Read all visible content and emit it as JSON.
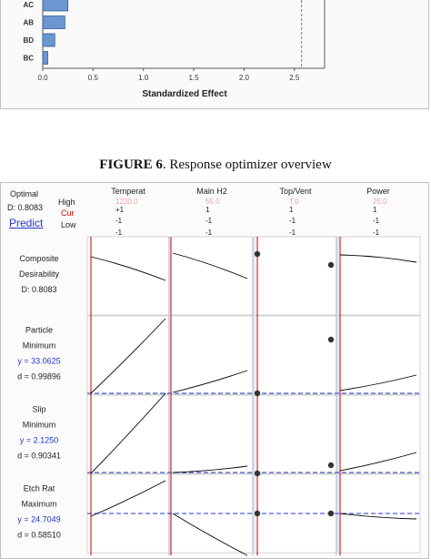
{
  "chart_data": [
    {
      "type": "bar",
      "orientation": "horizontal",
      "title": "",
      "xlabel": "Standardized Effect",
      "ylabel": "",
      "categories": [
        "AC",
        "AB",
        "BD",
        "BC"
      ],
      "values": [
        0.25,
        0.22,
        0.12,
        0.05
      ],
      "xlim": [
        0,
        2.8
      ],
      "xticks": [
        "0.0",
        "0.5",
        "1.0",
        "1.5",
        "2.0",
        "2.5"
      ],
      "reference_line": 2.571,
      "bar_color": "#6b96cf",
      "ref_color": "#d9534f"
    },
    {
      "type": "line",
      "title": "Response optimizer overview",
      "factors": [
        {
          "name": "Temperat",
          "high": "+1",
          "cur": "1220.0",
          "low": "-1"
        },
        {
          "name": "Main H2",
          "high": "1",
          "cur": "55.0",
          "low": "-1"
        },
        {
          "name": "Top/Vent",
          "high": "1",
          "cur": "T.0",
          "low": "-1"
        },
        {
          "name": "Power",
          "high": "1",
          "cur": "25.0",
          "low": "-1"
        }
      ],
      "responses": [
        {
          "name": "Composite",
          "goal": "Desirability",
          "y": "",
          "d": "D: 0.8083"
        },
        {
          "name": "Particle",
          "goal": "Minimum",
          "y": "y = 33.0625",
          "d": "d = 0.99896"
        },
        {
          "name": "Slip",
          "goal": "Minimum",
          "y": "y = 2.1250",
          "d": "d = 0.90341"
        },
        {
          "name": "Etch Rat",
          "goal": "Maximum",
          "y": "y = 24.7049",
          "d": "d = 0.58510"
        }
      ]
    }
  ],
  "figure": {
    "caption_label": "FIGURE 6",
    "caption_text": ". Response optimizer overview"
  },
  "optimizer": {
    "optimal_label": "Optimal",
    "d_value": "D: 0.8083",
    "predict_label": "Predict",
    "high_label": "High",
    "cur_label": "Cur",
    "low_label": "Low"
  },
  "colors": {
    "red_line": "#c00000",
    "blue_dash": "#2435c8",
    "curve": "#000000"
  }
}
